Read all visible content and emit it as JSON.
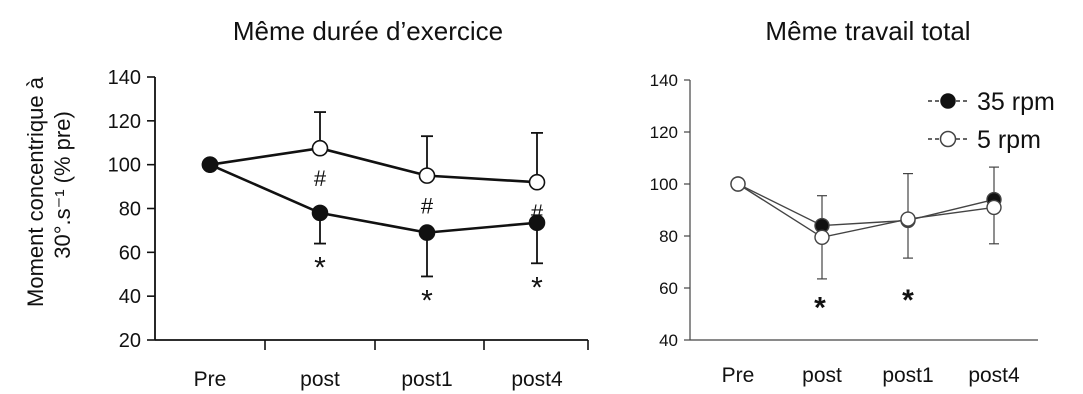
{
  "chart_data": [
    {
      "type": "line",
      "title": "Même durée d’exercice",
      "ylabel_line1": "Moment concentrique à",
      "ylabel_line2": "30°.s⁻¹ (% pre)",
      "categories": [
        "Pre",
        "post",
        "post1",
        "post4"
      ],
      "ylim": [
        20,
        140
      ],
      "yticks": [
        20,
        40,
        60,
        80,
        100,
        120,
        140
      ],
      "series": [
        {
          "marker": "filled",
          "values": [
            100,
            78,
            69,
            73.5
          ],
          "error_low": [
            null,
            64,
            49,
            55
          ],
          "error_high": [
            null,
            null,
            null,
            null
          ],
          "annotations": [
            "",
            "*",
            "*",
            "*"
          ]
        },
        {
          "marker": "open",
          "values": [
            100,
            107.5,
            95,
            92
          ],
          "error_low": [
            null,
            null,
            null,
            null
          ],
          "error_high": [
            null,
            124,
            113,
            114.5
          ],
          "annotations": [
            "",
            "#",
            "#",
            "#"
          ]
        }
      ]
    },
    {
      "type": "line",
      "title": "Même travail total",
      "categories": [
        "Pre",
        "post",
        "post1",
        "post4"
      ],
      "ylim": [
        40,
        140
      ],
      "yticks": [
        40,
        60,
        80,
        100,
        120,
        140
      ],
      "series": [
        {
          "name": "35 rpm",
          "marker": "filled",
          "values": [
            100,
            84,
            86,
            94
          ],
          "error_high": [
            null,
            95.5,
            104,
            106.5
          ]
        },
        {
          "name": "5 rpm",
          "marker": "open",
          "values": [
            100,
            79.5,
            86.5,
            91
          ],
          "error_low": [
            null,
            63.5,
            71.5,
            77
          ]
        }
      ],
      "annotations": [
        {
          "category": "post",
          "value": 54,
          "text": "*"
        },
        {
          "category": "post1",
          "value": 57,
          "text": "*"
        }
      ],
      "legend_position": "top-right"
    }
  ]
}
